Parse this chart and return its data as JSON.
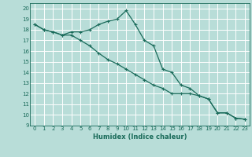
{
  "xlabel": "Humidex (Indice chaleur)",
  "xlim": [
    -0.5,
    23.5
  ],
  "ylim": [
    9,
    20.5
  ],
  "yticks": [
    9,
    10,
    11,
    12,
    13,
    14,
    15,
    16,
    17,
    18,
    19,
    20
  ],
  "xticks": [
    0,
    1,
    2,
    3,
    4,
    5,
    6,
    7,
    8,
    9,
    10,
    11,
    12,
    13,
    14,
    15,
    16,
    17,
    18,
    19,
    20,
    21,
    22,
    23
  ],
  "bg_color": "#b8ddd8",
  "grid_color": "#ffffff",
  "line_color": "#1a6b5a",
  "line1_x": [
    0,
    1,
    2,
    3,
    4,
    5,
    6,
    7,
    8,
    9,
    10,
    11,
    12,
    13,
    14,
    15,
    16,
    17,
    18,
    19,
    20,
    21,
    22,
    23
  ],
  "line1_y": [
    18.5,
    18.0,
    17.8,
    17.5,
    17.8,
    17.8,
    18.0,
    18.5,
    18.8,
    19.0,
    19.8,
    18.5,
    17.0,
    16.5,
    14.3,
    14.0,
    12.8,
    12.5,
    11.8,
    11.5,
    10.2,
    10.2,
    9.7,
    9.6
  ],
  "line2_x": [
    0,
    1,
    2,
    3,
    4,
    5,
    6,
    7,
    8,
    9,
    10,
    11,
    12,
    13,
    14,
    15,
    16,
    17,
    18,
    19,
    20,
    21,
    22,
    23
  ],
  "line2_y": [
    18.5,
    18.0,
    17.8,
    17.5,
    17.5,
    17.0,
    16.5,
    15.8,
    15.2,
    14.8,
    14.3,
    13.8,
    13.3,
    12.8,
    12.5,
    12.0,
    12.0,
    12.0,
    11.8,
    11.5,
    10.2,
    10.2,
    9.7,
    9.6
  ]
}
